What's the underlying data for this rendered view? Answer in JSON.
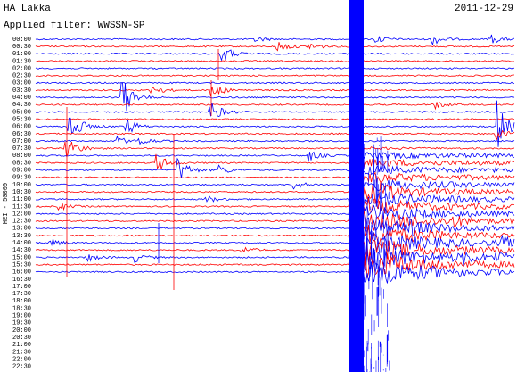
{
  "header": {
    "station": "HA Lakka",
    "filter": "Applied filter: WWSSN-SP",
    "date": "2011-12-29"
  },
  "scale_label": "HEI - 50000",
  "trace_colors": [
    "#0000ff",
    "#ff0000"
  ],
  "time_labels": [
    "00:00",
    "00:30",
    "01:00",
    "01:30",
    "02:00",
    "02:30",
    "03:00",
    "03:30",
    "04:00",
    "04:30",
    "05:00",
    "05:30",
    "06:00",
    "06:30",
    "07:00",
    "07:30",
    "08:00",
    "08:30",
    "09:00",
    "09:30",
    "10:00",
    "10:30",
    "11:00",
    "11:30",
    "12:00",
    "12:30",
    "13:00",
    "13:30",
    "14:00",
    "14:30",
    "15:00",
    "15:30",
    "16:00",
    "16:30",
    "17:00",
    "17:30",
    "18:00",
    "18:30",
    "19:00",
    "19:30",
    "20:00",
    "20:30",
    "21:00",
    "21:30",
    "22:00",
    "22:30"
  ]
}
